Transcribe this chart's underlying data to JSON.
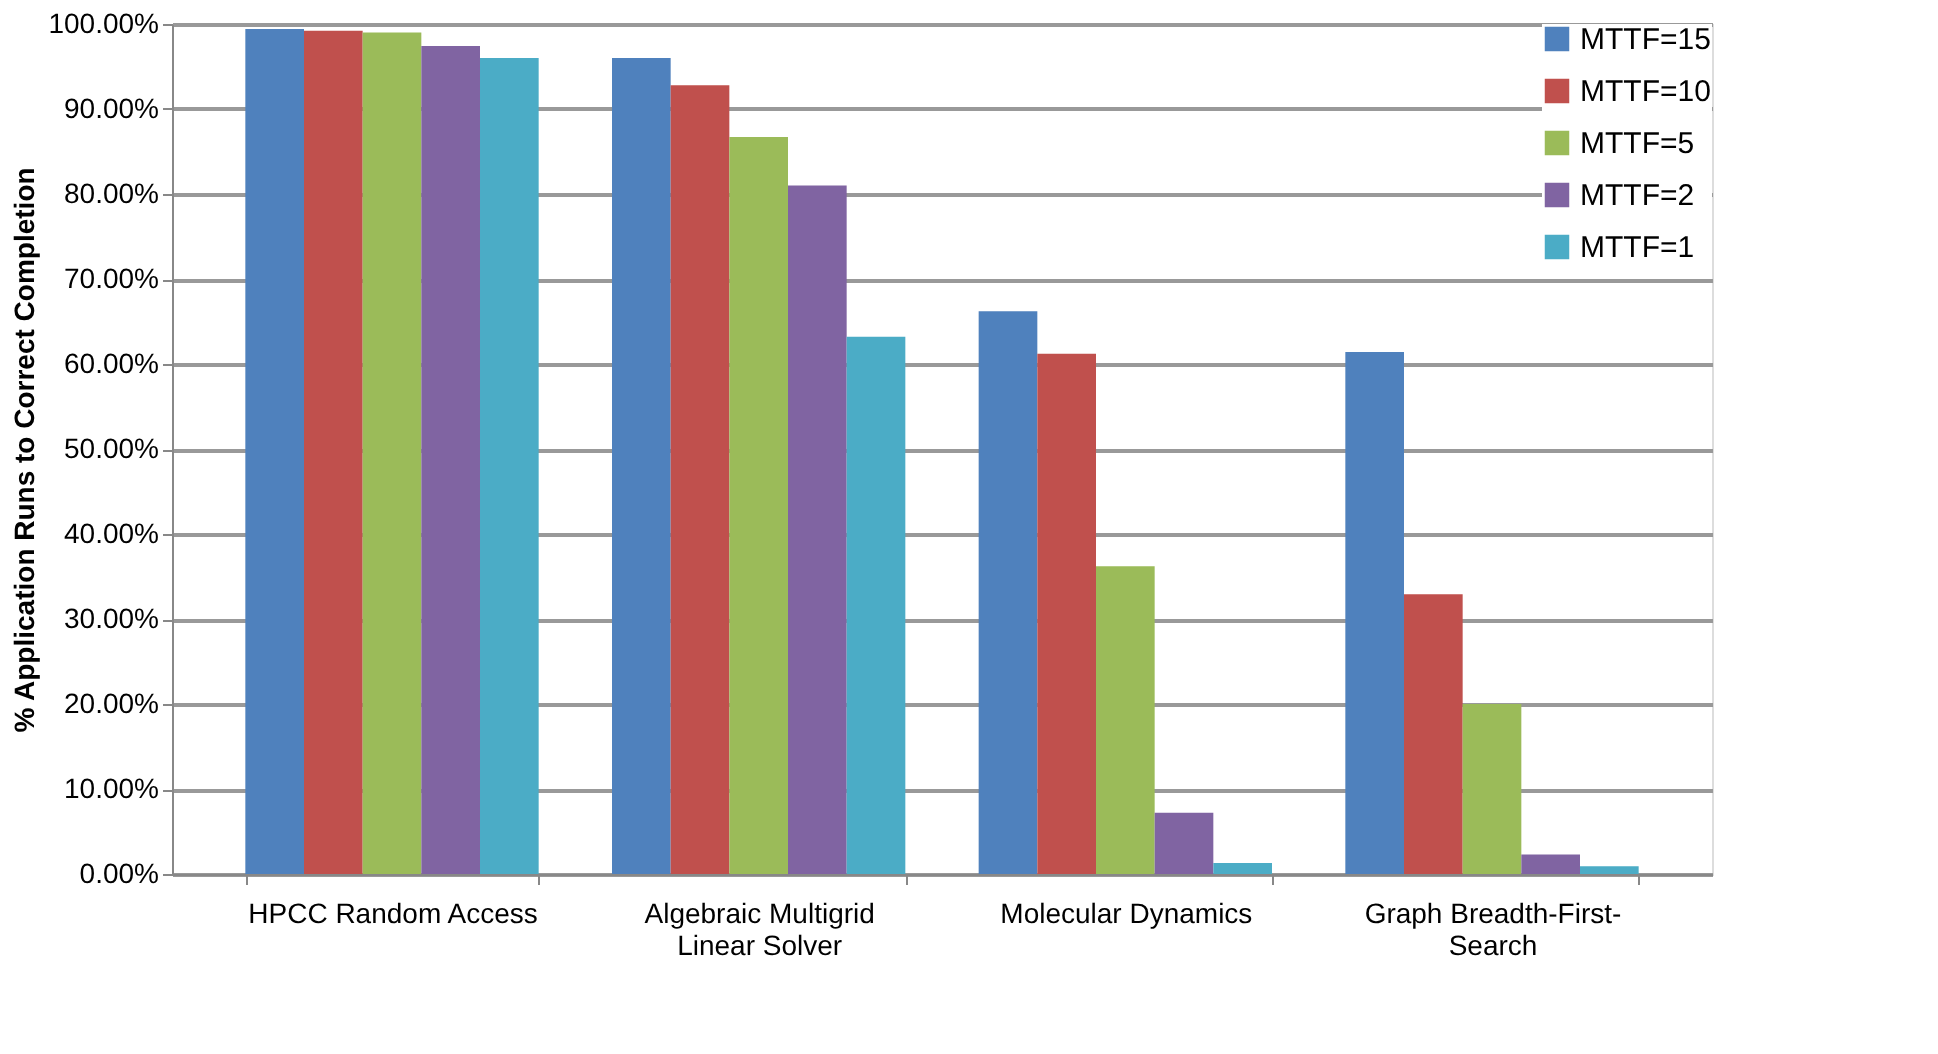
{
  "chart_data": {
    "type": "bar",
    "ylabel": "% Application Runs to Correct Completion",
    "categories": [
      "HPCC Random Access",
      "Algebraic Multigrid Linear Solver",
      "Molecular Dynamics",
      "Graph Breadth-First-Search"
    ],
    "series": [
      {
        "name": "MTTF=15",
        "color": "#4f81bd",
        "values": [
          99.4,
          96.0,
          66.2,
          61.4
        ]
      },
      {
        "name": "MTTF=10",
        "color": "#c0504d",
        "values": [
          99.2,
          92.8,
          61.2,
          32.9
        ]
      },
      {
        "name": "MTTF=5",
        "color": "#9bbb59",
        "values": [
          99.0,
          86.7,
          36.2,
          20.0
        ]
      },
      {
        "name": "MTTF=2",
        "color": "#8064a2",
        "values": [
          97.4,
          81.0,
          7.2,
          2.3
        ]
      },
      {
        "name": "MTTF=1",
        "color": "#4bacc6",
        "values": [
          96.0,
          63.2,
          1.3,
          0.9
        ]
      }
    ],
    "ylim": [
      0,
      100
    ],
    "yticks": [
      {
        "value": 0,
        "label": "0.00%"
      },
      {
        "value": 10,
        "label": "10.00%"
      },
      {
        "value": 20,
        "label": "20.00%"
      },
      {
        "value": 30,
        "label": "30.00%"
      },
      {
        "value": 40,
        "label": "40.00%"
      },
      {
        "value": 50,
        "label": "50.00%"
      },
      {
        "value": 60,
        "label": "60.00%"
      },
      {
        "value": 70,
        "label": "70.00%"
      },
      {
        "value": 80,
        "label": "80.00%"
      },
      {
        "value": 90,
        "label": "90.00%"
      },
      {
        "value": 100,
        "label": "100.00%"
      }
    ],
    "grid": "y",
    "legend": "top right"
  }
}
